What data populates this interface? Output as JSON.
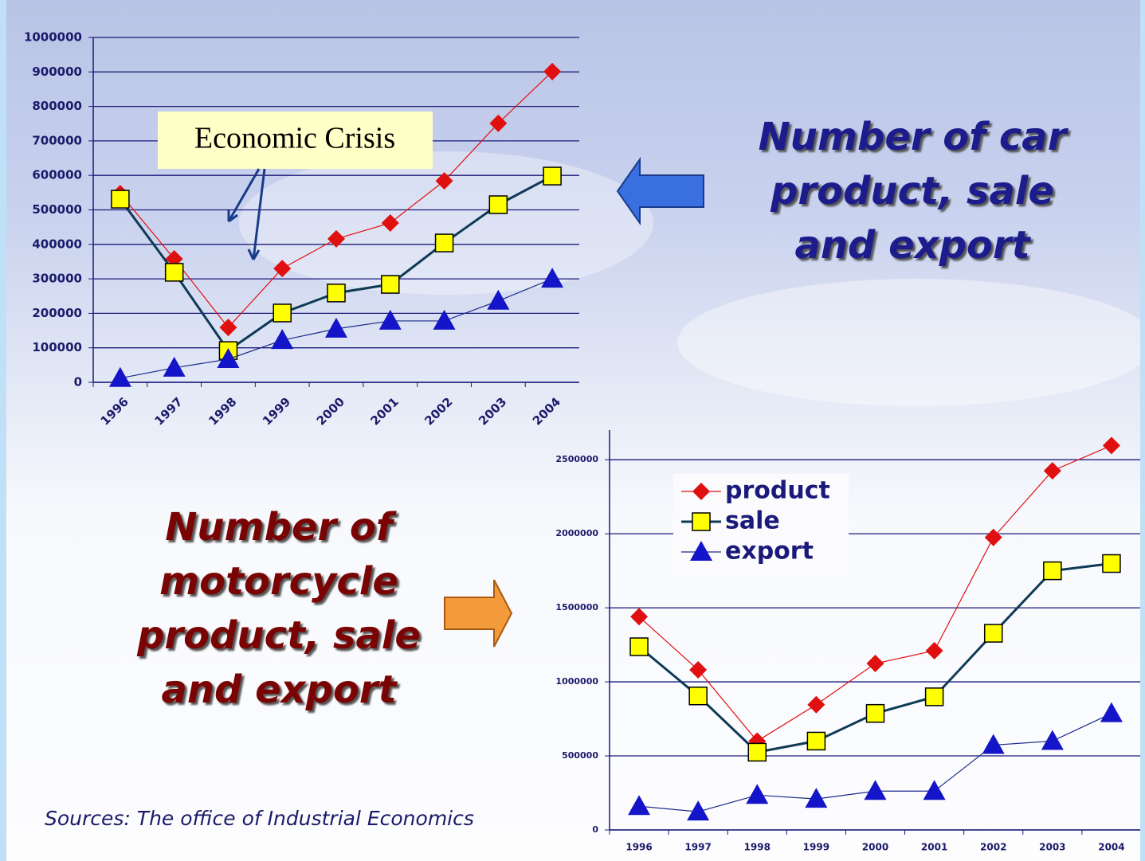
{
  "chart_data": [
    {
      "type": "line",
      "title": "Number of car product, sale and export",
      "annotation": "Economic Crisis",
      "categories": [
        "1996",
        "1997",
        "1998",
        "1999",
        "2000",
        "2001",
        "2002",
        "2003",
        "2004"
      ],
      "series": [
        {
          "color": "#e01010",
          "marker": "diamond",
          "marker_color": "#e01010",
          "values": [
            547000,
            358000,
            159000,
            330000,
            416000,
            462000,
            584000,
            751000,
            901000
          ]
        },
        {
          "color": "#0e3a55",
          "marker": "square",
          "marker_color": "#ffff00",
          "values": [
            531000,
            319000,
            92000,
            201000,
            259000,
            284000,
            404000,
            515000,
            598000
          ]
        },
        {
          "color": "#1a2a8a",
          "marker": "triangle",
          "marker_color": "#1414c8",
          "values": [
            12000,
            42000,
            67000,
            122000,
            155000,
            178000,
            178000,
            236000,
            300000
          ]
        }
      ],
      "ylim": [
        0,
        1000000
      ],
      "yticks": [
        0,
        100000,
        200000,
        300000,
        400000,
        500000,
        600000,
        700000,
        800000,
        900000,
        1000000
      ],
      "grid": true
    },
    {
      "type": "line",
      "title": "Number of motorcycle product, sale and export",
      "source": "Sources: The office of Industrial Economics",
      "categories": [
        "1996",
        "1997",
        "1998",
        "1999",
        "2000",
        "2001",
        "2002",
        "2003",
        "2004"
      ],
      "series": [
        {
          "name": "product",
          "color": "#e01010",
          "marker": "diamond",
          "marker_color": "#e01010",
          "values": [
            1440000,
            1081000,
            600000,
            846000,
            1124000,
            1210000,
            1975000,
            2425000,
            2596000
          ]
        },
        {
          "name": "sale",
          "color": "#0e3a55",
          "marker": "square",
          "marker_color": "#ffff00",
          "values": [
            1237000,
            905000,
            525000,
            600000,
            787000,
            899000,
            1328000,
            1750000,
            1799000
          ]
        },
        {
          "name": "export",
          "color": "#1a2a8a",
          "marker": "triangle",
          "marker_color": "#1414c8",
          "values": [
            160000,
            123000,
            235000,
            209000,
            262000,
            262000,
            573000,
            600000,
            787000
          ]
        }
      ],
      "ylim": [
        0,
        2700000
      ],
      "yticks": [
        0,
        500000,
        1000000,
        1500000,
        2000000,
        2500000
      ],
      "grid": true,
      "legend": "upper left"
    }
  ]
}
